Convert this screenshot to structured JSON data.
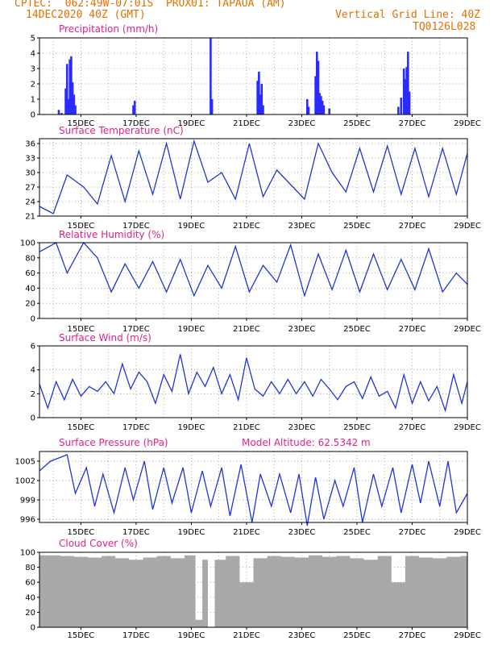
{
  "header": {
    "line1_left": "CPTEC:  062:49W-07:01S  PROX01: TAPAUA (AM)",
    "line2_left": "14DEC2020 40Z (GMT)",
    "line2_right": "Vertical Grid Line: 40Z",
    "line3_right": "TQ0126L028"
  },
  "x_tick_labels": [
    "15DEC",
    "17DEC",
    "19DEC",
    "21DEC",
    "23DEC",
    "25DEC",
    "27DEC",
    "29DEC"
  ],
  "colors": {
    "line": "#1f35d6",
    "bar": "#2b2bff",
    "cloud": "#a9a9a9",
    "title": "#e0208f",
    "header": "#e07000"
  },
  "chart_data": [
    {
      "type": "bar",
      "title": "Precipitation (mm/h)",
      "ylim": [
        0,
        5
      ],
      "yticks": [
        0,
        1,
        2,
        3,
        4,
        5
      ],
      "x": [
        14.2,
        14.3,
        14.45,
        14.5,
        14.55,
        14.6,
        14.65,
        14.7,
        14.75,
        14.8,
        16.9,
        16.95,
        19.7,
        19.75,
        21.4,
        21.45,
        21.5,
        21.55,
        21.6,
        23.2,
        23.25,
        23.5,
        23.55,
        23.6,
        23.65,
        23.7,
        23.75,
        23.8,
        24.0,
        26.5,
        26.6,
        26.7,
        26.75,
        26.8,
        26.85,
        26.9
      ],
      "values": [
        0.3,
        0.1,
        1.7,
        3.3,
        1.0,
        3.6,
        3.8,
        2.1,
        1.3,
        0.6,
        0.6,
        0.9,
        5.0,
        1.0,
        2.2,
        2.8,
        1.3,
        2.0,
        0.6,
        1.0,
        0.5,
        2.5,
        4.1,
        3.5,
        1.4,
        1.2,
        0.9,
        0.6,
        0.4,
        0.5,
        1.1,
        3.0,
        2.3,
        3.1,
        4.1,
        1.5
      ]
    },
    {
      "type": "line",
      "title": "Surface Temperature (nC)",
      "ylim": [
        21,
        37
      ],
      "yticks": [
        21,
        24,
        27,
        30,
        33,
        36
      ],
      "x": [
        13.5,
        14.0,
        14.5,
        15.1,
        15.6,
        16.1,
        16.6,
        17.1,
        17.6,
        18.1,
        18.6,
        19.1,
        19.6,
        20.1,
        20.6,
        21.1,
        21.6,
        22.1,
        22.6,
        23.1,
        23.6,
        24.1,
        24.6,
        25.1,
        25.6,
        26.1,
        26.6,
        27.1,
        27.6,
        28.1,
        28.6,
        29.0
      ],
      "values": [
        23,
        21.5,
        29.5,
        27,
        23.5,
        33.5,
        24,
        34.5,
        25.5,
        36,
        24.5,
        36.5,
        28,
        30,
        24.5,
        36,
        25,
        30.5,
        27.5,
        24.5,
        36,
        30,
        26,
        35,
        26,
        35.5,
        25.5,
        35,
        25,
        35,
        25.5,
        34
      ]
    },
    {
      "type": "line",
      "title": "Relative Humidity (%)",
      "ylim": [
        0,
        100
      ],
      "yticks": [
        0,
        20,
        40,
        60,
        80,
        100
      ],
      "x": [
        13.5,
        14.1,
        14.5,
        15.1,
        15.6,
        16.1,
        16.6,
        17.1,
        17.6,
        18.1,
        18.6,
        19.1,
        19.6,
        20.1,
        20.6,
        21.1,
        21.6,
        22.1,
        22.6,
        23.1,
        23.6,
        24.1,
        24.6,
        25.1,
        25.6,
        26.1,
        26.6,
        27.1,
        27.6,
        28.1,
        28.6,
        29.0
      ],
      "values": [
        88,
        100,
        60,
        100,
        80,
        35,
        72,
        40,
        75,
        35,
        78,
        30,
        70,
        40,
        95,
        35,
        70,
        48,
        97,
        30,
        85,
        38,
        90,
        35,
        85,
        38,
        78,
        38,
        92,
        35,
        60,
        45
      ]
    },
    {
      "type": "line",
      "title": "Surface Wind (m/s)",
      "ylim": [
        0,
        6
      ],
      "yticks": [
        0,
        2,
        4,
        6
      ],
      "x": [
        13.5,
        13.8,
        14.1,
        14.4,
        14.7,
        15.0,
        15.3,
        15.6,
        15.9,
        16.2,
        16.5,
        16.8,
        17.1,
        17.4,
        17.7,
        18.0,
        18.3,
        18.6,
        18.9,
        19.2,
        19.5,
        19.8,
        20.1,
        20.4,
        20.7,
        21.0,
        21.3,
        21.6,
        21.9,
        22.2,
        22.5,
        22.8,
        23.1,
        23.4,
        23.7,
        24.0,
        24.3,
        24.6,
        24.9,
        25.2,
        25.5,
        25.8,
        26.1,
        26.4,
        26.7,
        27.0,
        27.3,
        27.6,
        27.9,
        28.2,
        28.5,
        28.8,
        29.0
      ],
      "values": [
        2.8,
        0.8,
        3.0,
        1.5,
        3.2,
        1.8,
        2.6,
        2.2,
        3.0,
        2.0,
        4.5,
        2.4,
        3.8,
        3.0,
        1.2,
        3.6,
        2.2,
        5.3,
        2.0,
        3.8,
        2.6,
        4.2,
        2.0,
        3.6,
        1.5,
        5.0,
        2.4,
        1.8,
        3.0,
        2.0,
        3.2,
        2.0,
        3.0,
        1.8,
        3.2,
        2.4,
        1.5,
        2.6,
        3.0,
        1.6,
        3.4,
        1.8,
        2.2,
        0.8,
        3.6,
        1.2,
        3.0,
        1.4,
        2.6,
        0.6,
        3.6,
        1.2,
        3.0
      ]
    },
    {
      "type": "line",
      "title": "Surface Pressure (hPa)",
      "subtitle": "Model Altitude: 62.5342 m",
      "ylim": [
        995.5,
        1006.5
      ],
      "yticks": [
        996,
        999,
        1002,
        1005
      ],
      "x": [
        13.5,
        13.9,
        14.5,
        14.8,
        15.2,
        15.5,
        15.8,
        16.2,
        16.6,
        16.9,
        17.3,
        17.6,
        18.0,
        18.3,
        18.7,
        19.0,
        19.4,
        19.7,
        20.1,
        20.4,
        20.8,
        21.2,
        21.5,
        21.9,
        22.2,
        22.6,
        22.9,
        23.2,
        23.5,
        23.8,
        24.2,
        24.5,
        24.9,
        25.2,
        25.6,
        25.9,
        26.3,
        26.6,
        27.0,
        27.3,
        27.6,
        28.0,
        28.3,
        28.6,
        29.0
      ],
      "values": [
        1003.5,
        1005,
        1006,
        1000,
        1004,
        998,
        1003,
        997,
        1004,
        999,
        1005,
        997.5,
        1004,
        998.5,
        1004,
        997,
        1003.5,
        998,
        1004,
        996.5,
        1004.5,
        995.5,
        1003,
        998,
        1003,
        997,
        1003,
        995,
        1002.5,
        996,
        1002,
        998,
        1004,
        995.5,
        1003,
        998,
        1004,
        997,
        1004.5,
        998.5,
        1005,
        998,
        1005,
        997,
        1000
      ]
    },
    {
      "type": "bar",
      "title": "Cloud Cover (%)",
      "ylim": [
        0,
        100
      ],
      "yticks": [
        0,
        20,
        40,
        60,
        80,
        100
      ],
      "note_series": "near-continuous hourly cloud cover, mostly 85-100 with deep dips",
      "x": [
        14.0,
        14.5,
        15.0,
        15.5,
        16.0,
        16.5,
        17.0,
        17.5,
        18.0,
        18.5,
        19.0,
        19.3,
        19.5,
        19.7,
        20.0,
        20.5,
        21.0,
        21.5,
        22.0,
        22.5,
        23.0,
        23.5,
        24.0,
        24.5,
        25.0,
        25.5,
        26.0,
        26.5,
        27.0,
        27.5,
        28.0,
        28.5,
        29.0
      ],
      "values": [
        96,
        95,
        94,
        93,
        95,
        92,
        90,
        93,
        95,
        92,
        96,
        10,
        90,
        0,
        90,
        95,
        60,
        92,
        95,
        94,
        93,
        96,
        94,
        95,
        92,
        90,
        95,
        60,
        95,
        93,
        92,
        94,
        95
      ]
    }
  ]
}
